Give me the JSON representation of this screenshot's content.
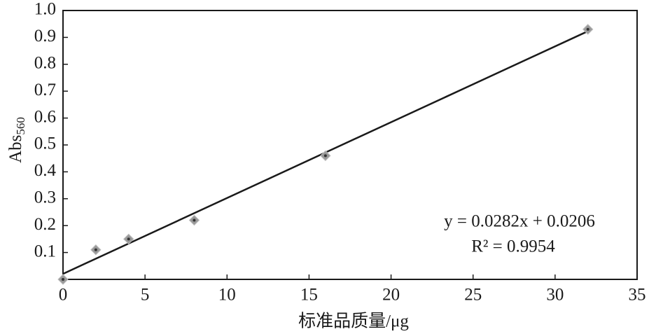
{
  "chart_data": {
    "type": "scatter",
    "x_label": "标准品质量/μg",
    "y_label": {
      "text": "Abs",
      "subscript": "560"
    },
    "x": [
      0,
      2,
      4,
      8,
      16,
      32
    ],
    "series": [
      {
        "values": [
          0,
          0.11,
          0.15,
          0.22,
          0.46,
          0.93
        ],
        "color": "#999999"
      }
    ],
    "trendline": {
      "slope": 0.0282,
      "intercept": 0.0206,
      "color": "#1a1a1a"
    },
    "annotations": [
      "y = 0.0282x + 0.0206",
      "R² = 0.9954"
    ],
    "xlim": [
      0,
      35
    ],
    "xticks": [
      0,
      5,
      10,
      15,
      20,
      25,
      30,
      35
    ],
    "ylim": [
      0,
      1
    ],
    "yticks": [
      0.1,
      0.2,
      0.3,
      0.4,
      0.5,
      0.6,
      0.7,
      0.8,
      0.9,
      {
        "value": 1,
        "label": "1.0"
      }
    ],
    "grid": false
  }
}
